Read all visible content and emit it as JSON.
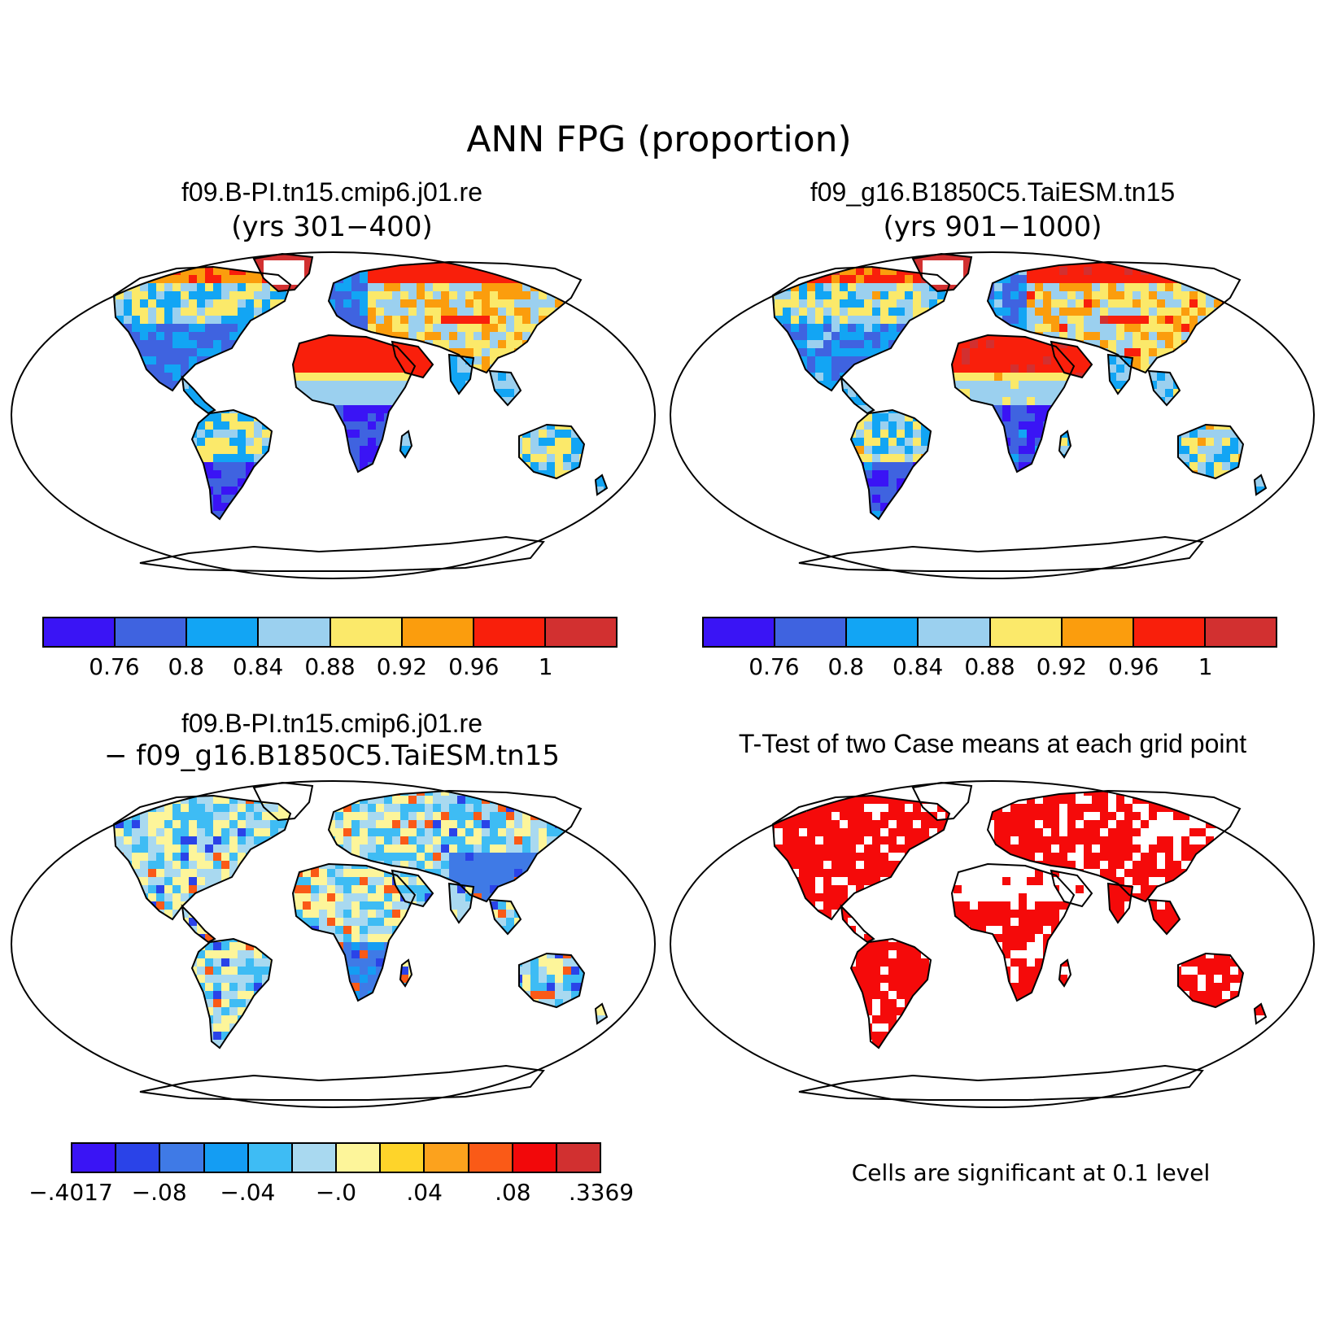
{
  "title": "ANN FPG (proportion)",
  "panels": [
    {
      "title": "f09.B-PI.tn15.cmip6.j01.re",
      "subtitle": "(yrs 301−400)"
    },
    {
      "title": "f09_g16.B1850C5.TaiESM.tn15",
      "subtitle": "(yrs 901−1000)"
    },
    {
      "title": "f09.B-PI.tn15.cmip6.j01.re",
      "subtitle": "− f09_g16.B1850C5.TaiESM.tn15"
    },
    {
      "title": "T-Test of two Case means at each grid point",
      "subtitle": ""
    }
  ],
  "colorbar_main": {
    "labels": [
      "0.76",
      "0.8",
      "0.84",
      "0.88",
      "0.92",
      "0.96",
      "1"
    ],
    "colors": [
      "#3a14f5",
      "#3f63e0",
      "#12a5f4",
      "#9bd0ef",
      "#fbe96a",
      "#fb9d0d",
      "#f91f0b",
      "#d23030"
    ]
  },
  "colorbar_diff": {
    "labels": [
      "−.4017",
      "−.08",
      "−.04",
      "−.0",
      ".04",
      ".08",
      ".3369"
    ],
    "colors": [
      "#3a14f5",
      "#2a43e8",
      "#3f7ae6",
      "#149df3",
      "#3ebcf4",
      "#a9d9f0",
      "#fdf59a",
      "#fed42a",
      "#fca21d",
      "#fa5a17",
      "#f2080a",
      "#d13030"
    ]
  },
  "ttest_note": "Cells are significant at 0.1 level",
  "chart_data": {
    "type": "heatmap",
    "title": "ANN FPG (proportion)",
    "variable": "FPG",
    "unit": "proportion",
    "projection": "Robinson",
    "panels": [
      {
        "case": "f09.B-PI.tn15.cmip6.j01.re",
        "years": "301-400",
        "levels": [
          0.76,
          0.8,
          0.84,
          0.88,
          0.92,
          0.96,
          1
        ]
      },
      {
        "case": "f09_g16.B1850C5.TaiESM.tn15",
        "years": "901-1000",
        "levels": [
          0.76,
          0.8,
          0.84,
          0.88,
          0.92,
          0.96,
          1
        ]
      },
      {
        "case": "difference",
        "levels": [
          -0.08,
          -0.06,
          -0.04,
          -0.02,
          0.0,
          0.02,
          0.04,
          0.06,
          0.08,
          0.1,
          0.12
        ],
        "min": -0.4017,
        "max": 0.3369
      },
      {
        "case": "t-test",
        "significance_level": 0.1
      }
    ]
  }
}
